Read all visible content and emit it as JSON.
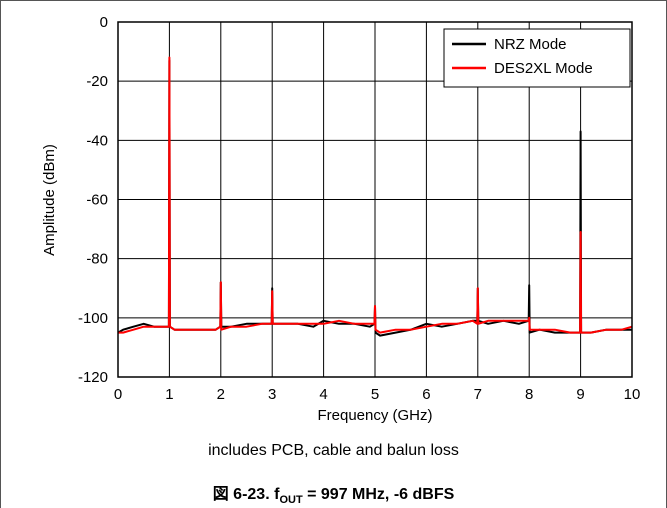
{
  "chart_data": {
    "type": "line",
    "xlabel": "Frequency (GHz)",
    "ylabel": "Amplitude (dBm)",
    "xlim": [
      0,
      10
    ],
    "ylim": [
      -120,
      0
    ],
    "x_ticks": [
      "0",
      "1",
      "2",
      "3",
      "4",
      "5",
      "6",
      "7",
      "8",
      "9",
      "10"
    ],
    "y_ticks": [
      "0",
      "-20",
      "-40",
      "-60",
      "-80",
      "-100",
      "-120"
    ],
    "grid": true,
    "legend_position": "top-right",
    "series": [
      {
        "name": "NRZ Mode",
        "color": "#000000",
        "x": [
          0,
          0.1,
          0.3,
          0.5,
          0.7,
          0.9,
          0.99,
          1.0,
          1.01,
          1.1,
          1.3,
          1.5,
          1.7,
          1.9,
          1.99,
          2.0,
          2.01,
          2.2,
          2.5,
          2.8,
          2.99,
          3.0,
          3.01,
          3.2,
          3.5,
          3.8,
          4.0,
          4.3,
          4.6,
          4.9,
          4.99,
          5.0,
          5.01,
          5.1,
          5.4,
          5.7,
          6.0,
          6.3,
          6.6,
          6.9,
          6.99,
          7.0,
          7.01,
          7.2,
          7.5,
          7.8,
          7.99,
          8.0,
          8.01,
          8.2,
          8.5,
          8.8,
          8.99,
          9.0,
          9.01,
          9.2,
          9.5,
          9.8,
          10.0
        ],
        "values": [
          -105,
          -104,
          -103,
          -102,
          -103,
          -103,
          -103,
          -13,
          -103,
          -104,
          -104,
          -104,
          -104,
          -104,
          -103,
          -88,
          -103,
          -103,
          -102,
          -102,
          -102,
          -90,
          -102,
          -102,
          -102,
          -103,
          -101,
          -102,
          -102,
          -103,
          -102,
          -96,
          -105,
          -106,
          -105,
          -104,
          -102,
          -103,
          -102,
          -101,
          -101,
          -90,
          -101,
          -102,
          -101,
          -102,
          -101,
          -89,
          -105,
          -104,
          -105,
          -105,
          -105,
          -37,
          -105,
          -105,
          -104,
          -104,
          -104
        ]
      },
      {
        "name": "DES2XL Mode",
        "color": "#ff0000",
        "x": [
          0,
          0.1,
          0.3,
          0.5,
          0.7,
          0.9,
          0.99,
          1.0,
          1.01,
          1.1,
          1.3,
          1.5,
          1.7,
          1.9,
          1.99,
          2.0,
          2.01,
          2.2,
          2.5,
          2.8,
          2.99,
          3.0,
          3.01,
          3.2,
          3.5,
          3.8,
          4.0,
          4.3,
          4.6,
          4.9,
          4.99,
          5.0,
          5.01,
          5.1,
          5.4,
          5.7,
          6.0,
          6.3,
          6.6,
          6.9,
          6.99,
          7.0,
          7.01,
          7.2,
          7.5,
          7.8,
          7.99,
          8.0,
          8.01,
          8.2,
          8.5,
          8.8,
          8.99,
          9.0,
          9.01,
          9.2,
          9.5,
          9.8,
          10.0
        ],
        "values": [
          -105,
          -105,
          -104,
          -103,
          -103,
          -103,
          -103,
          -12,
          -103,
          -104,
          -104,
          -104,
          -104,
          -104,
          -103,
          -88,
          -104,
          -103,
          -103,
          -102,
          -102,
          -91,
          -102,
          -102,
          -102,
          -102,
          -102,
          -101,
          -102,
          -102,
          -102,
          -96,
          -104,
          -105,
          -104,
          -104,
          -103,
          -102,
          -102,
          -101,
          -102,
          -90,
          -102,
          -101,
          -101,
          -101,
          -101,
          -100,
          -104,
          -104,
          -104,
          -105,
          -105,
          -71,
          -105,
          -105,
          -104,
          -104,
          -103
        ]
      }
    ]
  },
  "note": "includes PCB, cable and balun loss",
  "caption": {
    "prefix": "図 6-23. f",
    "sub": "OUT",
    "suffix": " = 997 MHz, -6 dBFS"
  }
}
